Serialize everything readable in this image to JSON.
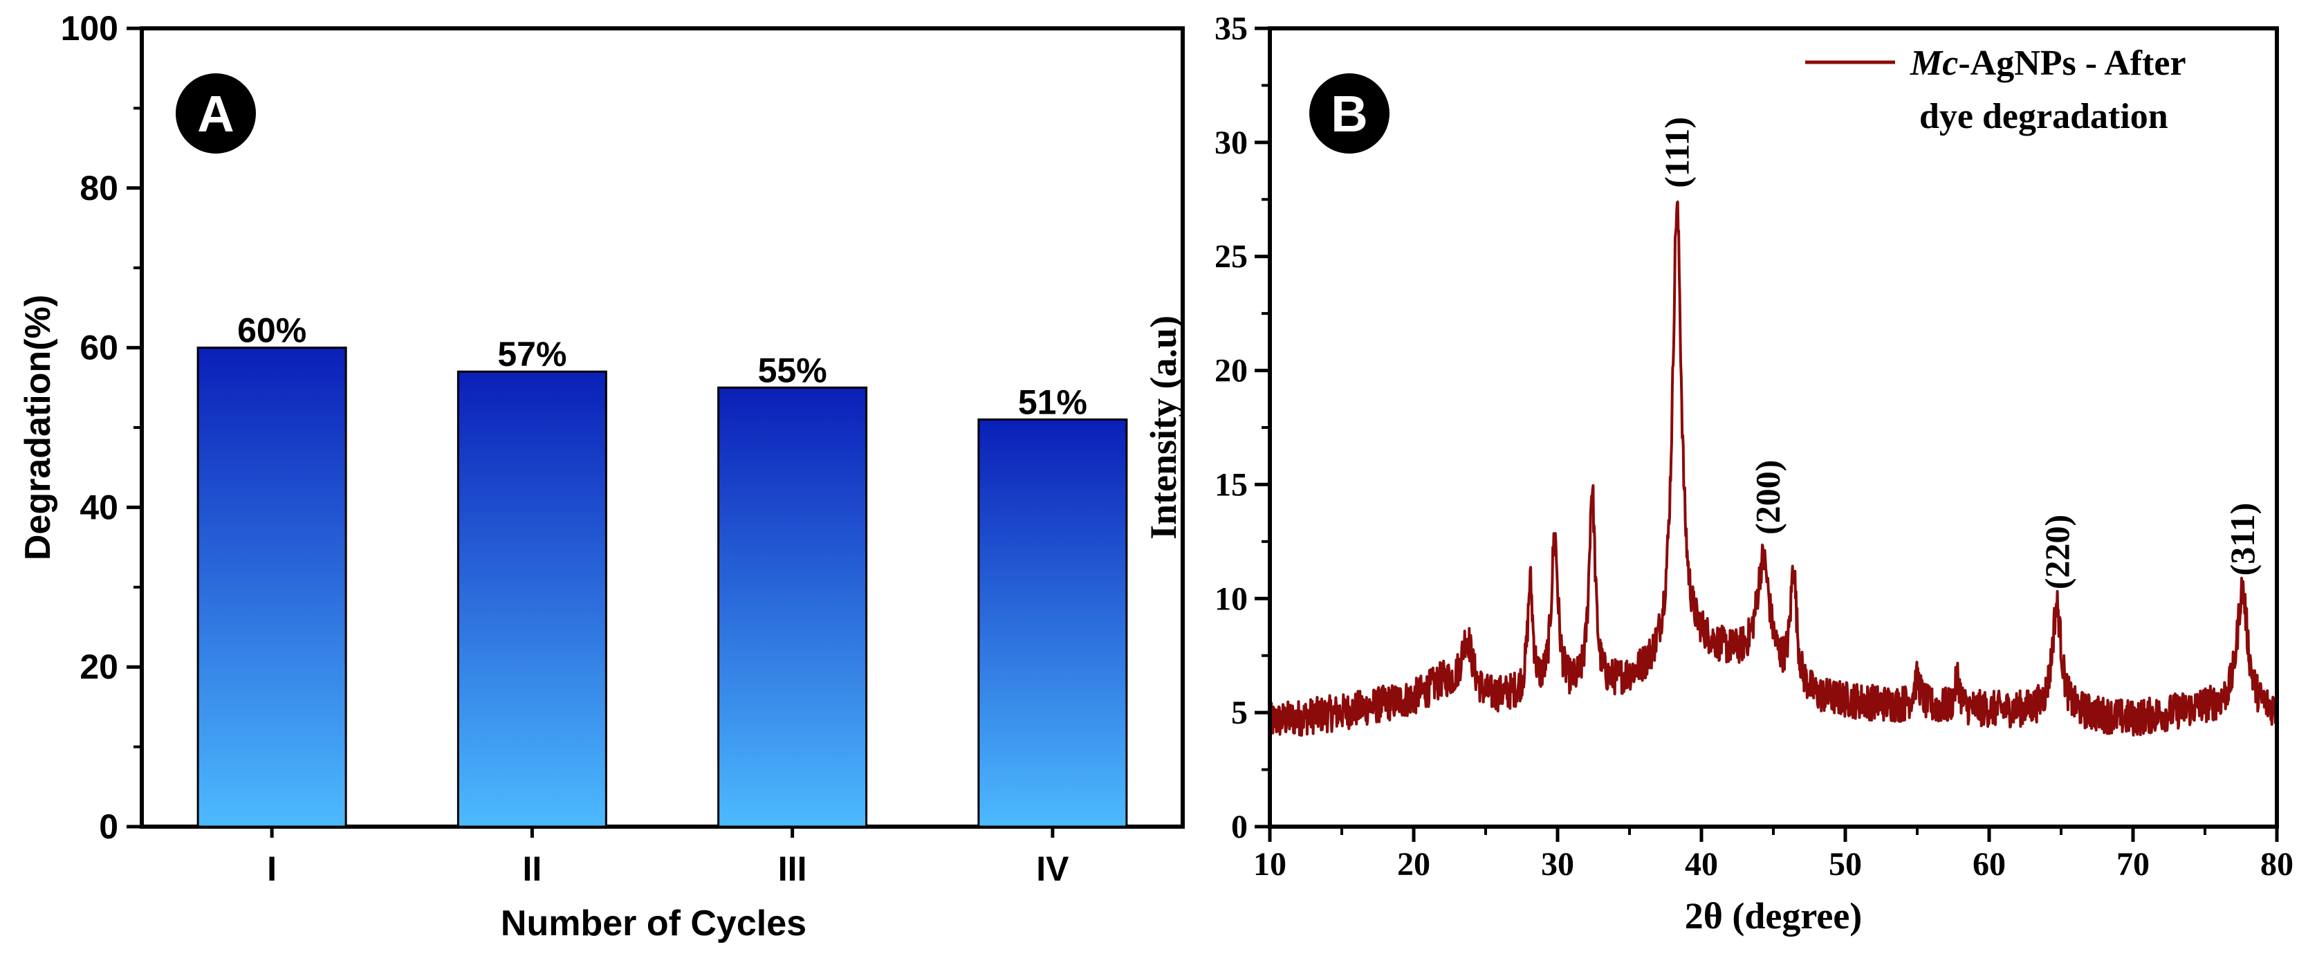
{
  "chart_data": [
    {
      "type": "bar",
      "panel_label": "A",
      "categories": [
        "I",
        "II",
        "III",
        "IV"
      ],
      "values": [
        60,
        57,
        55,
        51
      ],
      "data_labels": [
        "60%",
        "57%",
        "55%",
        "51%"
      ],
      "xlabel": "Number of Cycles",
      "ylabel": "Degradation(%)",
      "ylim": [
        0,
        100
      ],
      "yticks": [
        "0",
        "20",
        "40",
        "60",
        "80",
        "100"
      ],
      "bar_gradient": [
        "#0a1fb8",
        "#4dbaff"
      ],
      "grid": false
    },
    {
      "type": "line",
      "panel_label": "B",
      "xlabel": "2θ (degree)",
      "ylabel": "Intensity (a.u)",
      "xlim": [
        10,
        80
      ],
      "ylim": [
        0,
        35
      ],
      "xticks": [
        "10",
        "20",
        "30",
        "40",
        "50",
        "60",
        "70",
        "80"
      ],
      "yticks": [
        "0",
        "5",
        "10",
        "15",
        "20",
        "25",
        "30",
        "35"
      ],
      "legend": {
        "position": "top-right",
        "name_italic": "Mc",
        "name_rest": "-AgNPs - After",
        "name_line2": "dye degradation"
      },
      "series_color": "#8b0a0a",
      "baseline": [
        [
          10,
          4.6
        ],
        [
          15,
          5.0
        ],
        [
          20,
          5.6
        ],
        [
          22,
          6.3
        ],
        [
          25,
          5.6
        ],
        [
          30,
          5.8
        ],
        [
          33,
          5.9
        ],
        [
          36,
          6.6
        ],
        [
          40,
          7.8
        ],
        [
          43,
          7.2
        ],
        [
          48,
          5.6
        ],
        [
          55,
          5.2
        ],
        [
          65,
          5.0
        ],
        [
          70,
          4.7
        ],
        [
          75,
          5.2
        ],
        [
          80,
          5.0
        ]
      ],
      "peaks": [
        {
          "x": 23.7,
          "h": 2.4,
          "w": 0.45
        },
        {
          "x": 28.1,
          "h": 4.8,
          "w": 0.22
        },
        {
          "x": 29.8,
          "h": 6.8,
          "w": 0.28
        },
        {
          "x": 32.4,
          "h": 8.8,
          "w": 0.26
        },
        {
          "x": 38.3,
          "h": 19.8,
          "w": 0.38
        },
        {
          "x": 44.3,
          "h": 4.8,
          "w": 0.55
        },
        {
          "x": 46.4,
          "h": 5.0,
          "w": 0.25
        },
        {
          "x": 55.0,
          "h": 1.2,
          "w": 0.3
        },
        {
          "x": 57.8,
          "h": 1.4,
          "w": 0.2
        },
        {
          "x": 64.7,
          "h": 4.7,
          "w": 0.38
        },
        {
          "x": 77.6,
          "h": 5.3,
          "w": 0.45
        }
      ],
      "peak_labels": [
        {
          "x": 38.3,
          "y": 28.0,
          "text": "(111)"
        },
        {
          "x": 44.6,
          "y": 12.8,
          "text": "(200)"
        },
        {
          "x": 64.7,
          "y": 10.4,
          "text": "(220)"
        },
        {
          "x": 77.6,
          "y": 11.0,
          "text": "(311)"
        }
      ]
    }
  ]
}
